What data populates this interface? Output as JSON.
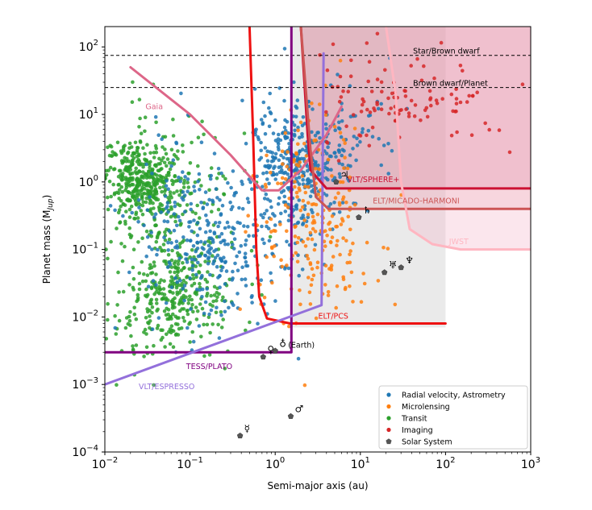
{
  "chart_data": {
    "type": "scatter",
    "xscale": "log",
    "yscale": "log",
    "xlim": [
      0.01,
      1000
    ],
    "ylim": [
      0.0001,
      200
    ],
    "xlabel": "Semi-major axis (au)",
    "ylabel": "Planet mass (M",
    "ylabel_sub": "Jup",
    "ylabel_close": ")",
    "xticks": [
      {
        "v": 0.01,
        "m": "10",
        "e": "−2"
      },
      {
        "v": 0.1,
        "m": "10",
        "e": "−1"
      },
      {
        "v": 1,
        "m": "10",
        "e": "0"
      },
      {
        "v": 10,
        "m": "10",
        "e": "1"
      },
      {
        "v": 100,
        "m": "10",
        "e": "2"
      },
      {
        "v": 1000,
        "m": "10",
        "e": "3"
      }
    ],
    "yticks": [
      {
        "v": 0.0001,
        "m": "10",
        "e": "−4"
      },
      {
        "v": 0.001,
        "m": "10",
        "e": "−3"
      },
      {
        "v": 0.01,
        "m": "10",
        "e": "−2"
      },
      {
        "v": 0.1,
        "m": "10",
        "e": "−1"
      },
      {
        "v": 1,
        "m": "10",
        "e": "0"
      },
      {
        "v": 10,
        "m": "10",
        "e": "1"
      },
      {
        "v": 100,
        "m": "10",
        "e": "2"
      }
    ],
    "hlines": [
      {
        "y": 75,
        "label": "Star/Brown dwarf",
        "label_x": 80
      },
      {
        "y": 25,
        "label": "Brown dwarf/Planet",
        "label_x": 80
      }
    ],
    "regions": [
      {
        "name": "ELT/PCS region",
        "color": "#d9d9d9",
        "opacity": 0.55,
        "points": [
          [
            0.5,
            200
          ],
          [
            1.55,
            200
          ],
          [
            1.55,
            0.007
          ],
          [
            100,
            0.007
          ],
          [
            100,
            200
          ]
        ]
      },
      {
        "name": "VLT/SPHERE+ region",
        "color": "#c03060",
        "opacity": 0.22,
        "points": [
          [
            2,
            200
          ],
          [
            1000,
            200
          ],
          [
            1000,
            0.8
          ],
          [
            4,
            0.8
          ],
          [
            2.6,
            1.5
          ],
          [
            2.4,
            5
          ],
          [
            2.2,
            30
          ],
          [
            2,
            200
          ]
        ]
      },
      {
        "name": "ELT/MICADO-HARMONI region",
        "color": "#e8a0a8",
        "opacity": 0.25,
        "points": [
          [
            2,
            200
          ],
          [
            2.6,
            3
          ],
          [
            3,
            0.6
          ],
          [
            4.2,
            0.4
          ],
          [
            1000,
            0.4
          ],
          [
            1000,
            200
          ]
        ]
      },
      {
        "name": "JWST region",
        "color": "#f4b8cc",
        "opacity": 0.35,
        "points": [
          [
            20,
            200
          ],
          [
            26,
            20
          ],
          [
            30,
            1
          ],
          [
            38,
            0.2
          ],
          [
            70,
            0.12
          ],
          [
            150,
            0.1
          ],
          [
            1000,
            0.1
          ],
          [
            1000,
            200
          ]
        ]
      }
    ],
    "curves": [
      {
        "name": "ELT/PCS",
        "color": "#ee1111",
        "width": 3,
        "points": [
          [
            0.5,
            200
          ],
          [
            0.55,
            5
          ],
          [
            0.6,
            0.1
          ],
          [
            0.65,
            0.02
          ],
          [
            0.8,
            0.0095
          ],
          [
            1.5,
            0.008
          ],
          [
            100,
            0.008
          ]
        ]
      },
      {
        "name": "TESS/PLATO",
        "color": "#800080",
        "width": 3,
        "points": [
          [
            0.01,
            0.003
          ],
          [
            1.55,
            0.003
          ],
          [
            1.55,
            200
          ]
        ]
      },
      {
        "name": "VLT/ESPRESSO",
        "color": "#9370DB",
        "width": 3,
        "points": [
          [
            0.01,
            0.001
          ],
          [
            3.5,
            0.015
          ],
          [
            3.7,
            80
          ]
        ]
      },
      {
        "name": "Gaia",
        "color": "#dd6688",
        "width": 3,
        "points": [
          [
            0.02,
            50
          ],
          [
            0.1,
            10
          ],
          [
            0.3,
            2.5
          ],
          [
            0.7,
            0.75
          ],
          [
            1.1,
            0.75
          ],
          [
            2,
            1.5
          ],
          [
            4,
            5
          ],
          [
            6,
            13
          ]
        ]
      },
      {
        "name": "VLT/SPHERE+",
        "color": "#cc1133",
        "width": 3,
        "points": [
          [
            2,
            200
          ],
          [
            2.2,
            30
          ],
          [
            2.4,
            5
          ],
          [
            2.6,
            1.5
          ],
          [
            4,
            0.8
          ],
          [
            1000,
            0.8
          ]
        ]
      },
      {
        "name": "ELT/MICADO-HARMONI",
        "color": "#cc5555",
        "width": 3,
        "points": [
          [
            2,
            200
          ],
          [
            2.6,
            3
          ],
          [
            3,
            0.6
          ],
          [
            4.2,
            0.4
          ],
          [
            1000,
            0.4
          ]
        ]
      },
      {
        "name": "JWST",
        "color": "#ffb6c1",
        "width": 3,
        "points": [
          [
            20,
            200
          ],
          [
            26,
            20
          ],
          [
            30,
            1
          ],
          [
            38,
            0.2
          ],
          [
            70,
            0.12
          ],
          [
            150,
            0.1
          ],
          [
            1000,
            0.1
          ]
        ]
      }
    ],
    "curve_labels": [
      {
        "text": "Gaia",
        "x": 0.03,
        "y": 12,
        "color": "#dd6688"
      },
      {
        "text": "VLT/SPHERE+",
        "x": 7,
        "y": 1.0,
        "color": "#cc1133"
      },
      {
        "text": "ELT/MICADO-HARMONI",
        "x": 14,
        "y": 0.48,
        "color": "#cc5555"
      },
      {
        "text": "JWST",
        "x": 110,
        "y": 0.12,
        "color": "#ffb6c1"
      },
      {
        "text": "ELT/PCS",
        "x": 3.2,
        "y": 0.0095,
        "color": "#ee1111"
      },
      {
        "text": "TESS/PLATO",
        "x": 0.09,
        "y": 0.0017,
        "color": "#800080"
      },
      {
        "text": "VLT/ESPRESSO",
        "x": 0.025,
        "y": 0.00085,
        "color": "#9370DB"
      }
    ],
    "series": [
      {
        "name": "Radial velocity, Astrometry",
        "color": "#1f77b4",
        "key": "rv"
      },
      {
        "name": "Microlensing",
        "color": "#ff7f0e",
        "key": "micro"
      },
      {
        "name": "Transit",
        "color": "#2ca02c",
        "key": "transit"
      },
      {
        "name": "Imaging",
        "color": "#d62728",
        "key": "imaging"
      },
      {
        "name": "Solar System",
        "color": "#555555",
        "key": "solar"
      }
    ],
    "clusters": [
      {
        "series": "transit",
        "n": 420,
        "lx": [
          -1.55,
          0.22
        ],
        "ly": [
          -0.05,
          0.32
        ],
        "seed": 11
      },
      {
        "series": "transit",
        "n": 260,
        "lx": [
          -1.15,
          0.28
        ],
        "ly": [
          -1.65,
          0.32
        ],
        "seed": 12
      },
      {
        "series": "transit",
        "n": 170,
        "lx": [
          -1.2,
          0.42
        ],
        "ly": [
          -0.6,
          0.75
        ],
        "seed": 13
      },
      {
        "series": "transit",
        "n": 40,
        "lx": [
          -1.5,
          0.3
        ],
        "ly": [
          -2.3,
          0.25
        ],
        "seed": 14
      },
      {
        "series": "rv",
        "n": 330,
        "lx": [
          0.25,
          0.28
        ],
        "ly": [
          0.25,
          0.45
        ],
        "seed": 21
      },
      {
        "series": "rv",
        "n": 220,
        "lx": [
          -0.55,
          0.45
        ],
        "ly": [
          -1.1,
          0.55
        ],
        "seed": 22
      },
      {
        "series": "rv",
        "n": 110,
        "lx": [
          -1.1,
          0.35
        ],
        "ly": [
          -0.4,
          0.7
        ],
        "seed": 23
      },
      {
        "series": "rv",
        "n": 70,
        "lx": [
          0.75,
          0.35
        ],
        "ly": [
          0.7,
          0.5
        ],
        "seed": 24
      },
      {
        "series": "micro",
        "n": 190,
        "lx": [
          0.4,
          0.3
        ],
        "ly": [
          -0.5,
          0.75
        ],
        "seed": 31
      },
      {
        "series": "micro",
        "n": 40,
        "lx": [
          0.8,
          0.3
        ],
        "ly": [
          -0.9,
          0.5
        ],
        "seed": 32
      },
      {
        "series": "imaging",
        "n": 85,
        "lx": [
          1.7,
          0.5
        ],
        "ly": [
          1.15,
          0.4
        ],
        "seed": 41
      },
      {
        "series": "imaging",
        "n": 25,
        "lx": [
          1.0,
          0.35
        ],
        "ly": [
          1.2,
          0.55
        ],
        "seed": 42
      }
    ],
    "solar_system": [
      {
        "name": "Mercury",
        "symbol": "☿",
        "a": 0.387,
        "m": 0.000174
      },
      {
        "name": "Venus",
        "symbol": "♀",
        "a": 0.723,
        "m": 0.00256
      },
      {
        "name": "Earth",
        "symbol": "♁",
        "a": 1.0,
        "m": 0.00315,
        "note": "(Earth)"
      },
      {
        "name": "Mars",
        "symbol": "♂",
        "a": 1.524,
        "m": 0.000338
      },
      {
        "name": "Jupiter",
        "symbol": "♃",
        "a": 5.2,
        "m": 1.0
      },
      {
        "name": "Saturn",
        "symbol": "♄",
        "a": 9.58,
        "m": 0.299
      },
      {
        "name": "Uranus",
        "symbol": "♅",
        "a": 19.2,
        "m": 0.0457
      },
      {
        "name": "Neptune",
        "symbol": "♆",
        "a": 30.05,
        "m": 0.054
      }
    ],
    "legend_position": "lower-right",
    "grid": false
  }
}
